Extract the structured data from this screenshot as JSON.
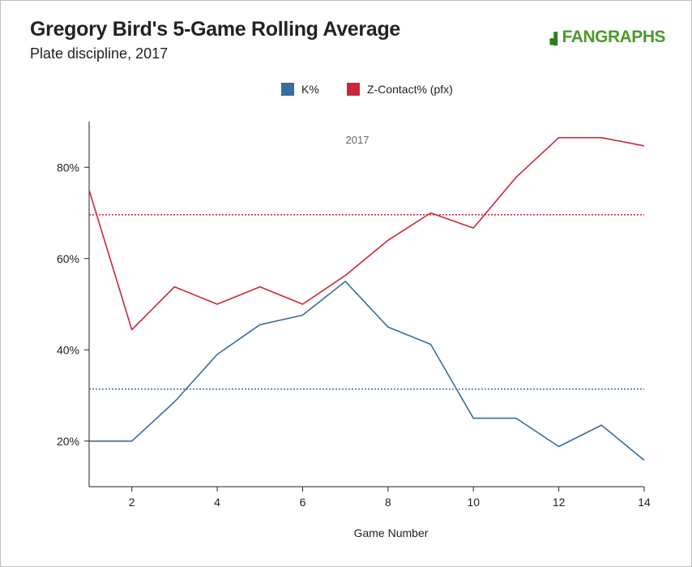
{
  "header": {
    "title": "Gregory Bird's 5-Game Rolling Average",
    "subtitle": "Plate discipline, 2017",
    "logo_text": "FANGRAPHS"
  },
  "chart_data": {
    "type": "line",
    "title": "Gregory Bird's 5-Game Rolling Average",
    "subtitle": "Plate discipline, 2017",
    "xlabel": "Game Number",
    "ylabel": "",
    "annotation": "2017",
    "xlim": [
      1,
      14
    ],
    "ylim": [
      10,
      90
    ],
    "x_ticks": [
      2,
      4,
      6,
      8,
      10,
      12,
      14
    ],
    "y_ticks": [
      20,
      40,
      60,
      80
    ],
    "y_tick_labels": [
      "20%",
      "40%",
      "60%",
      "80%"
    ],
    "legend_position": "top-center",
    "grid": false,
    "x": [
      1,
      2,
      3,
      4,
      5,
      6,
      7,
      8,
      9,
      10,
      11,
      12,
      13,
      14
    ],
    "series": [
      {
        "name": "K%",
        "color": "#3a6c9e",
        "values": [
          20.0,
          20.0,
          28.6,
          39.0,
          45.5,
          47.6,
          55.0,
          45.0,
          41.2,
          25.0,
          25.0,
          18.8,
          23.5,
          15.8
        ],
        "average": 31.4
      },
      {
        "name": "Z-Contact% (pfx)",
        "color": "#c8283a",
        "values": [
          75.0,
          44.4,
          53.8,
          50.0,
          53.8,
          50.0,
          56.3,
          64.0,
          70.0,
          66.7,
          77.8,
          86.5,
          86.5,
          84.7
        ],
        "average": 69.6
      }
    ]
  }
}
